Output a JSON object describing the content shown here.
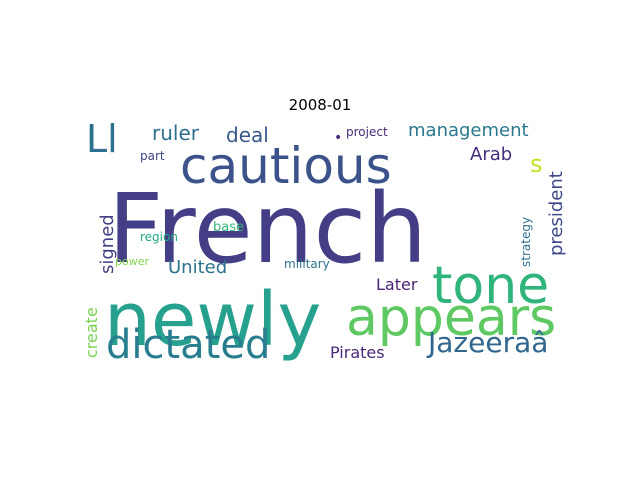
{
  "chart_data": {
    "type": "wordcloud",
    "title": "2008-01",
    "words": [
      {
        "text": "French",
        "color": "#433e85"
      },
      {
        "text": "newly",
        "color": "#25a18e"
      },
      {
        "text": "cautious",
        "color": "#3b528b"
      },
      {
        "text": "tone",
        "color": "#2fb47c"
      },
      {
        "text": "appears",
        "color": "#5ec962"
      },
      {
        "text": "dictated",
        "color": "#287d8e"
      },
      {
        "text": "Jazeeraâ",
        "color": "#31668e"
      },
      {
        "text": "Ll",
        "color": "#2d708e"
      },
      {
        "text": "management",
        "color": "#2a788e"
      },
      {
        "text": "ruler",
        "color": "#2e6e8e"
      },
      {
        "text": "deal",
        "color": "#38588c"
      },
      {
        "text": "United",
        "color": "#2c728e"
      },
      {
        "text": "signed",
        "color": "#423f85"
      },
      {
        "text": "president",
        "color": "#3e4989"
      },
      {
        "text": "Arab",
        "color": "#472d7b"
      },
      {
        "text": "s",
        "color": "#c8e020"
      },
      {
        "text": "Pirates",
        "color": "#482878"
      },
      {
        "text": "Later",
        "color": "#482475"
      },
      {
        "text": "create",
        "color": "#7ad151"
      },
      {
        "text": "strategy",
        "color": "#2e6e8e"
      },
      {
        "text": "project",
        "color": "#472c7a"
      },
      {
        "text": "part",
        "color": "#3f4788"
      },
      {
        "text": "base",
        "color": "#35b779"
      },
      {
        "text": "region",
        "color": "#22a884"
      },
      {
        "text": "military",
        "color": "#2c728e"
      },
      {
        "text": "power",
        "color": "#84d44b"
      },
      {
        "text": "•",
        "color": "#472c7a"
      }
    ]
  }
}
